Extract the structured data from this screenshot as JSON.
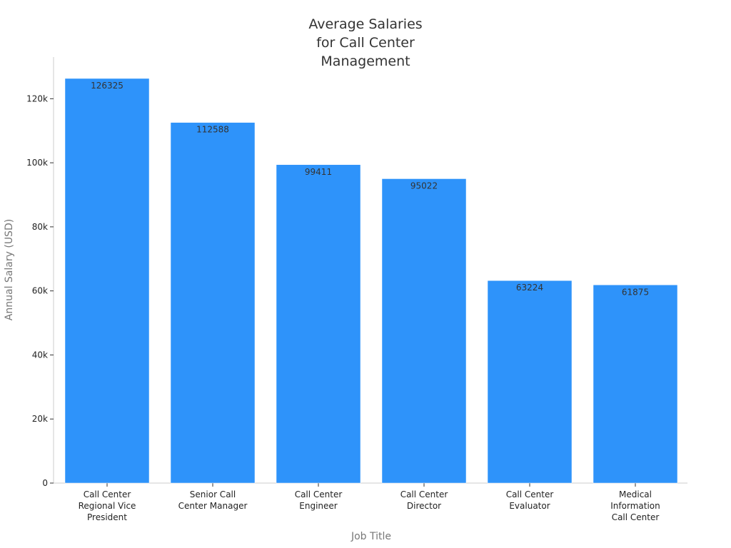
{
  "chart_data": {
    "type": "bar",
    "title": [
      "Average Salaries",
      "for Call Center",
      "Management"
    ],
    "xlabel": "Job Title",
    "ylabel": "Annual Salary (USD)",
    "categories": [
      [
        "Call Center",
        "Regional Vice",
        "President"
      ],
      [
        "Senior Call",
        "Center Manager"
      ],
      [
        "Call Center",
        "Engineer"
      ],
      [
        "Call Center",
        "Director"
      ],
      [
        "Call Center",
        "Evaluator"
      ],
      [
        "Medical",
        "Information",
        "Call Center"
      ]
    ],
    "values": [
      126325,
      112588,
      99411,
      95022,
      63224,
      61875
    ],
    "data_labels": [
      "126325",
      "112588",
      "99411",
      "95022",
      "63224",
      "61875"
    ],
    "ylim": [
      0,
      133000
    ],
    "yticks": [
      0,
      20000,
      40000,
      60000,
      80000,
      100000,
      120000
    ],
    "ytick_labels": [
      "0",
      "20k",
      "40k",
      "60k",
      "80k",
      "100k",
      "120k"
    ],
    "bar_color": "#2e93fa",
    "grid": false,
    "legend": "none"
  }
}
